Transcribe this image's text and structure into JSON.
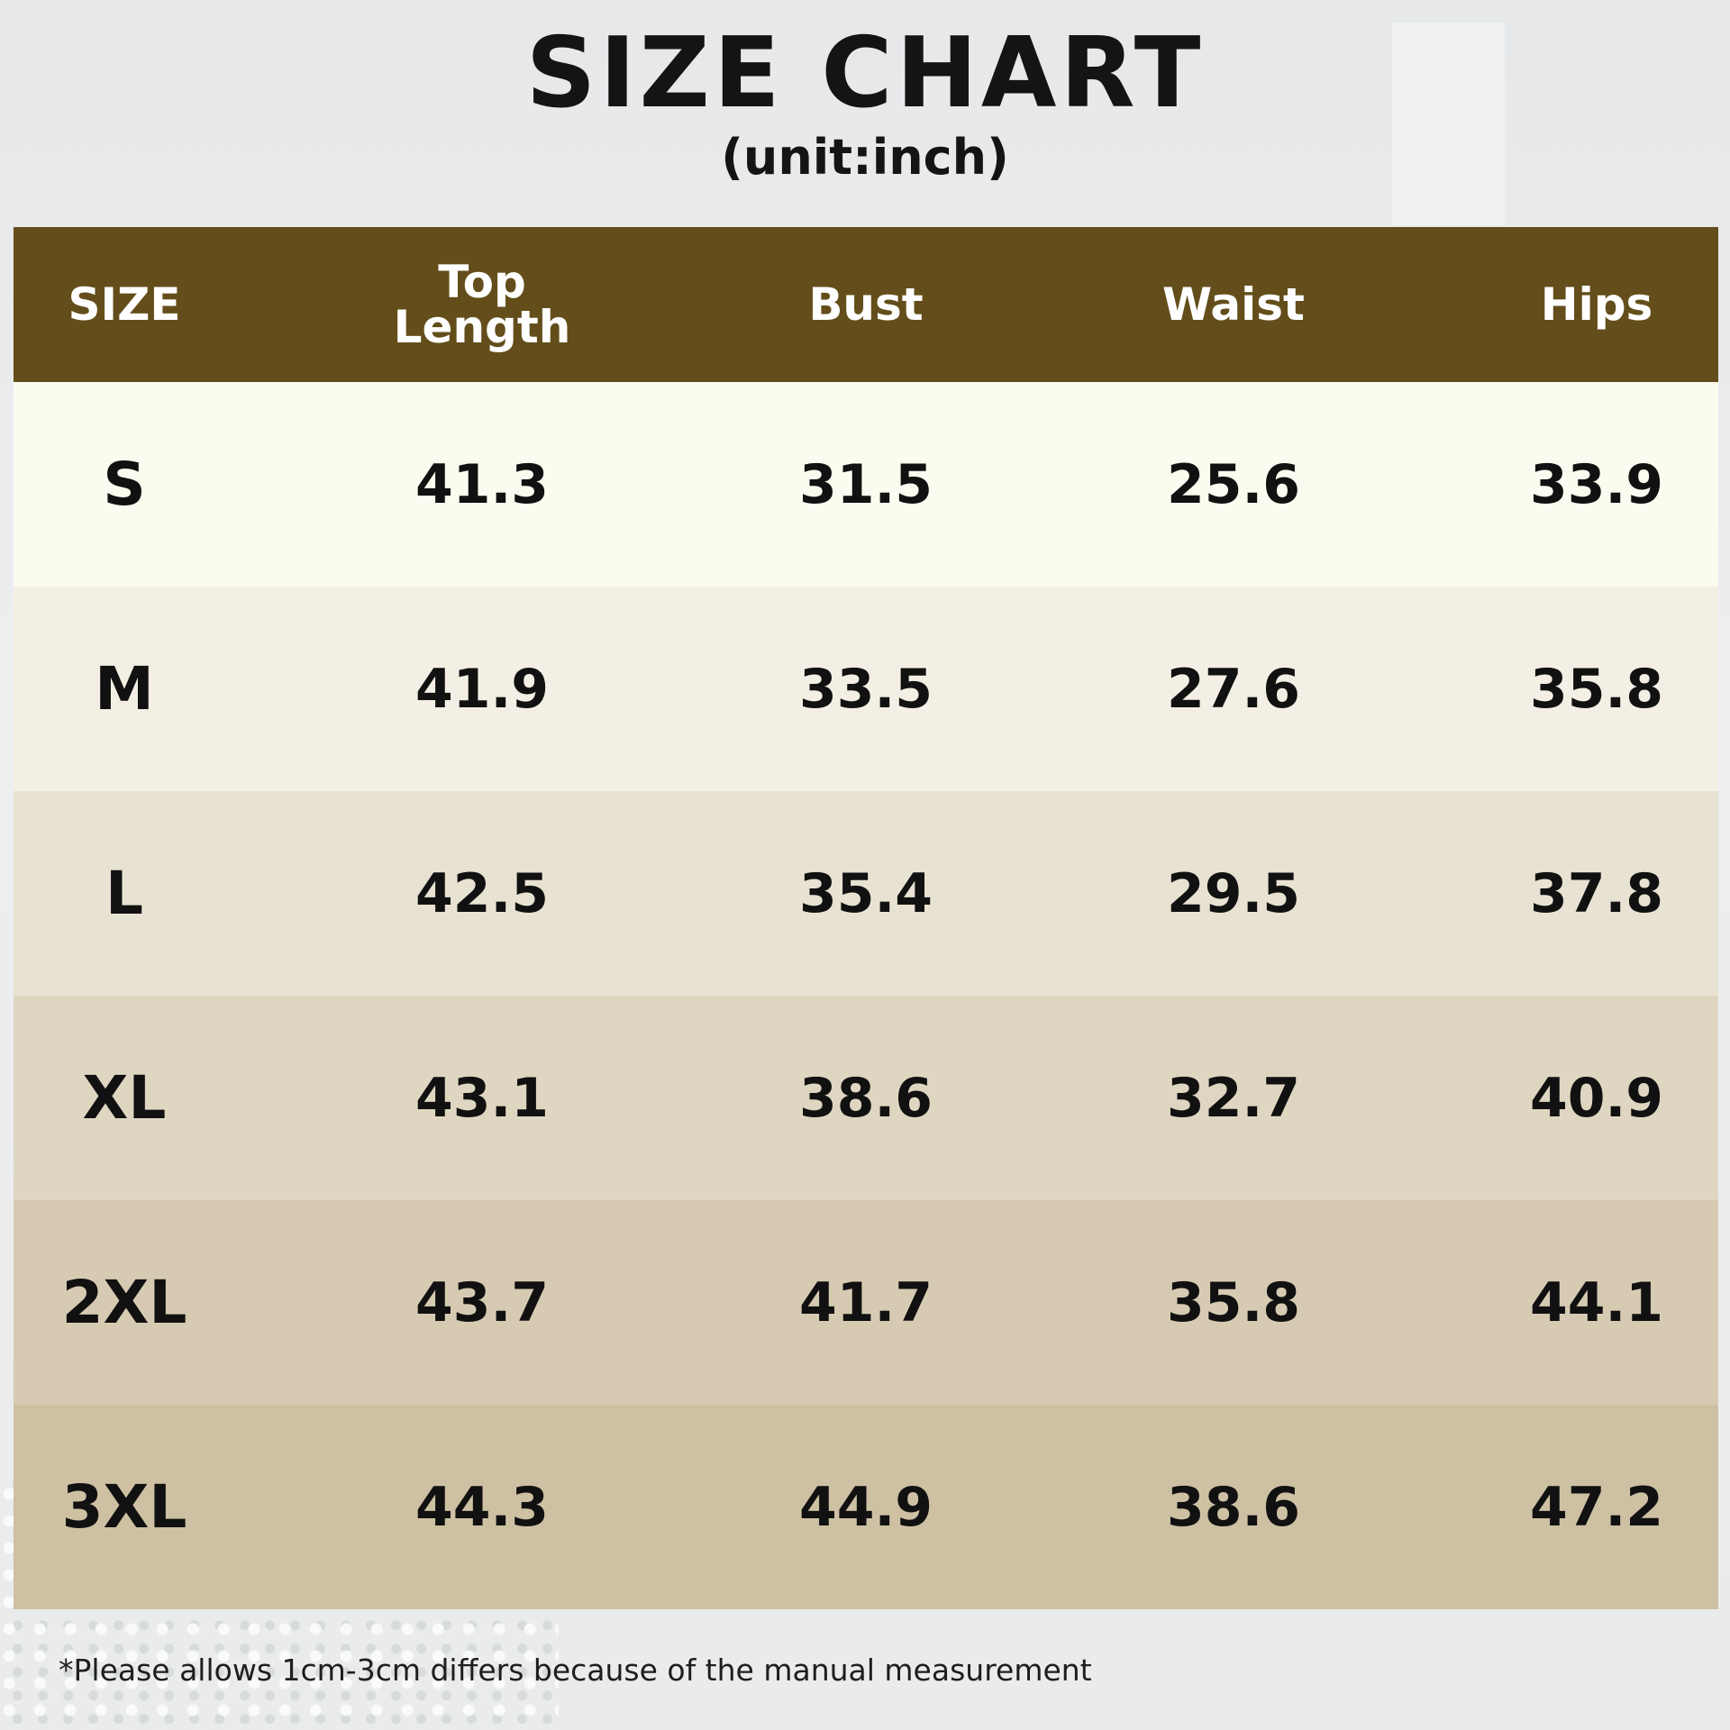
{
  "title": "SIZE CHART",
  "subtitle": "(unit:inch)",
  "colors": {
    "header_bg": "#634e1b",
    "header_text": "#ffffff",
    "row_backgrounds": [
      "#fcfbf0",
      "#f4efe4",
      "#e8e2d3",
      "#dfd6c1",
      "#d6cbb2",
      "#cec1a3"
    ]
  },
  "footnote": "*Please allows 1cm-3cm differs because of the manual measurement",
  "chart_data": {
    "type": "table",
    "columns": [
      "SIZE",
      "Top Length",
      "Bust",
      "Waist",
      "Hips"
    ],
    "header_lines": [
      [
        "SIZE"
      ],
      [
        "Top",
        "Length"
      ],
      [
        "Bust"
      ],
      [
        "Waist"
      ],
      [
        "Hips"
      ]
    ],
    "rows": [
      [
        "S",
        "41.3",
        "31.5",
        "25.6",
        "33.9"
      ],
      [
        "M",
        "41.9",
        "33.5",
        "27.6",
        "35.8"
      ],
      [
        "L",
        "42.5",
        "35.4",
        "29.5",
        "37.8"
      ],
      [
        "XL",
        "43.1",
        "38.6",
        "32.7",
        "40.9"
      ],
      [
        "2XL",
        "43.7",
        "41.7",
        "35.8",
        "44.1"
      ],
      [
        "3XL",
        "44.3",
        "44.9",
        "38.6",
        "47.2"
      ]
    ]
  }
}
